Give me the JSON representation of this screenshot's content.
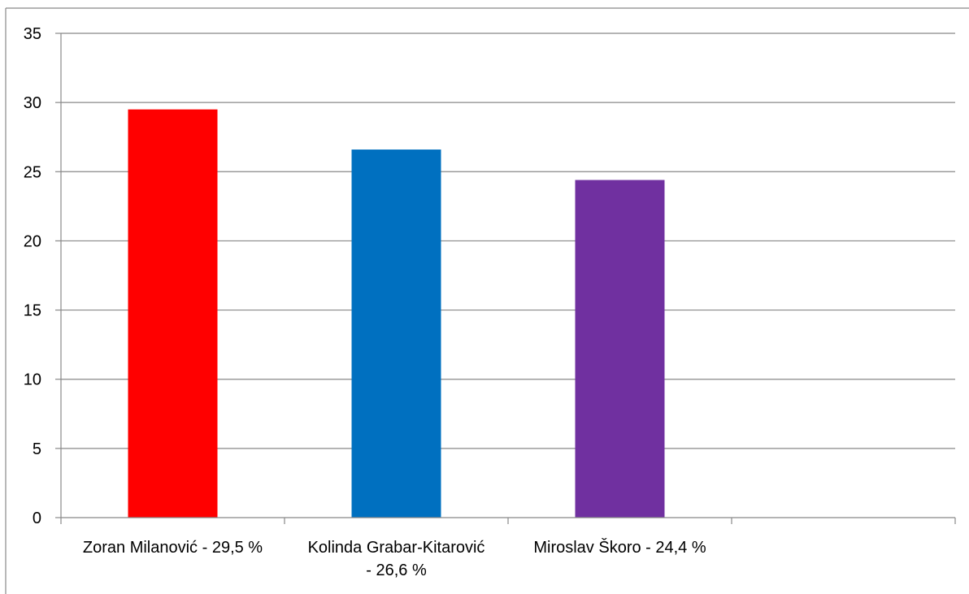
{
  "chart_data": {
    "type": "bar",
    "categories": [
      [
        "Zoran Milanović - 29,5 %"
      ],
      [
        "Kolinda Grabar-Kitarović",
        "- 26,6 %"
      ],
      [
        "Miroslav Škoro - 24,4 %"
      ],
      [
        ""
      ]
    ],
    "values": [
      29.5,
      26.6,
      24.4,
      null
    ],
    "colors": [
      "#ff0000",
      "#0070c0",
      "#7030a0",
      null
    ],
    "ylim": [
      0,
      35
    ],
    "yticks": [
      0,
      5,
      10,
      15,
      20,
      25,
      30,
      35
    ],
    "grid": true,
    "legend": false,
    "title": "",
    "xlabel": "",
    "ylabel": ""
  }
}
